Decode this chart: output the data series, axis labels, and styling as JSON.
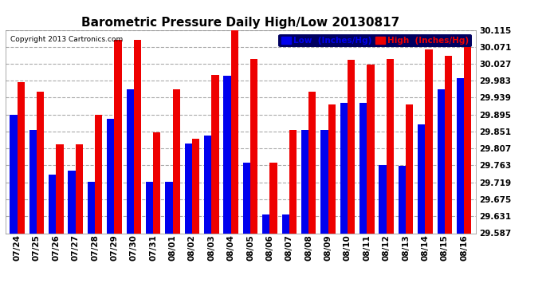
{
  "title": "Barometric Pressure Daily High/Low 20130817",
  "copyright": "Copyright 2013 Cartronics.com",
  "background_color": "#FFFFFF",
  "plot_bg_color": "#FFFFFF",
  "legend_low_label": "Low  (Inches/Hg)",
  "legend_high_label": "High  (Inches/Hg)",
  "dates": [
    "07/24",
    "07/25",
    "07/26",
    "07/27",
    "07/28",
    "07/29",
    "07/30",
    "07/31",
    "08/01",
    "08/02",
    "08/03",
    "08/04",
    "08/05",
    "08/06",
    "08/07",
    "08/08",
    "08/09",
    "08/10",
    "08/11",
    "08/12",
    "08/13",
    "08/14",
    "08/15",
    "08/16"
  ],
  "low_values": [
    29.895,
    29.855,
    29.74,
    29.75,
    29.721,
    29.885,
    29.96,
    29.721,
    29.72,
    29.82,
    29.84,
    29.995,
    29.77,
    29.635,
    29.635,
    29.855,
    29.855,
    29.925,
    29.925,
    29.765,
    29.762,
    29.87,
    29.96,
    29.99
  ],
  "high_values": [
    29.98,
    29.955,
    29.817,
    29.818,
    29.895,
    30.09,
    30.09,
    29.848,
    29.96,
    29.832,
    29.997,
    30.12,
    30.04,
    29.77,
    29.855,
    29.955,
    29.922,
    30.038,
    30.025,
    30.04,
    29.922,
    30.065,
    30.048,
    30.07
  ],
  "ylim_low": 29.587,
  "ylim_high": 30.115,
  "yticks": [
    29.587,
    29.631,
    29.675,
    29.719,
    29.763,
    29.807,
    29.851,
    29.895,
    29.939,
    29.983,
    30.027,
    30.071,
    30.115
  ],
  "bar_width": 0.38,
  "low_color": "#0000EE",
  "high_color": "#EE0000",
  "grid_color": "#AAAAAA",
  "title_fontsize": 11,
  "tick_fontsize": 7.5,
  "legend_fontsize": 7.5
}
